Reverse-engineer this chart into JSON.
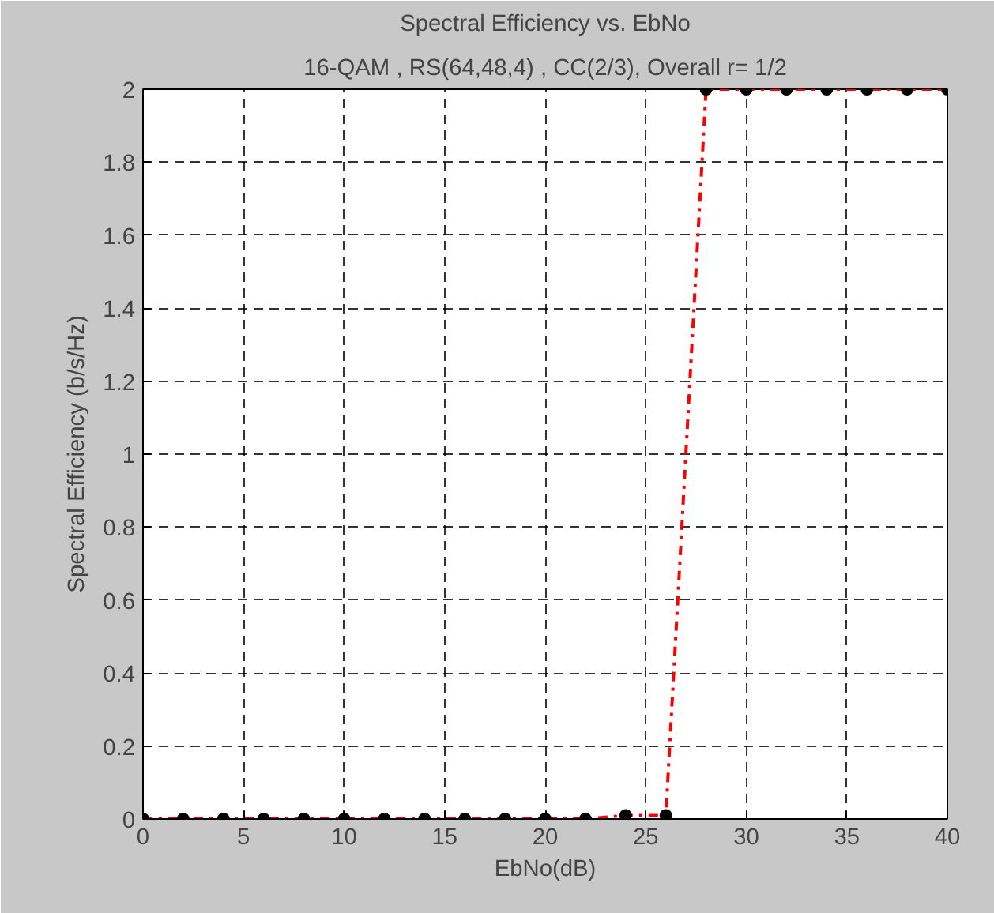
{
  "chart_data": {
    "type": "line",
    "title": "Spectral Efficiency vs. EbNo",
    "subtitle": "16-QAM , RS(64,48,4) , CC(2/3), Overall r= 1/2",
    "xlabel": "EbNo(dB)",
    "ylabel": "Spectral Efficiency (b/s/Hz)",
    "x": [
      0,
      2,
      4,
      6,
      8,
      10,
      12,
      14,
      16,
      18,
      20,
      22,
      24,
      26,
      28,
      30,
      32,
      34,
      36,
      38,
      40
    ],
    "series": [
      {
        "color": "#ff0000",
        "values": [
          0,
          0,
          0,
          0,
          0,
          0,
          0,
          0,
          0,
          0,
          0,
          0,
          0.01,
          0.01,
          2,
          2,
          2,
          2,
          2,
          2,
          2
        ]
      }
    ],
    "xlim": [
      0,
      40
    ],
    "ylim": [
      0,
      2
    ],
    "xticks": [
      0,
      5,
      10,
      15,
      20,
      25,
      30,
      35,
      40
    ],
    "yticks": [
      0,
      0.2,
      0.4,
      0.6,
      0.8,
      1,
      1.2,
      1.4,
      1.6,
      1.8,
      2
    ],
    "grid": true,
    "marker": "circle",
    "line_style": "dashdot"
  }
}
